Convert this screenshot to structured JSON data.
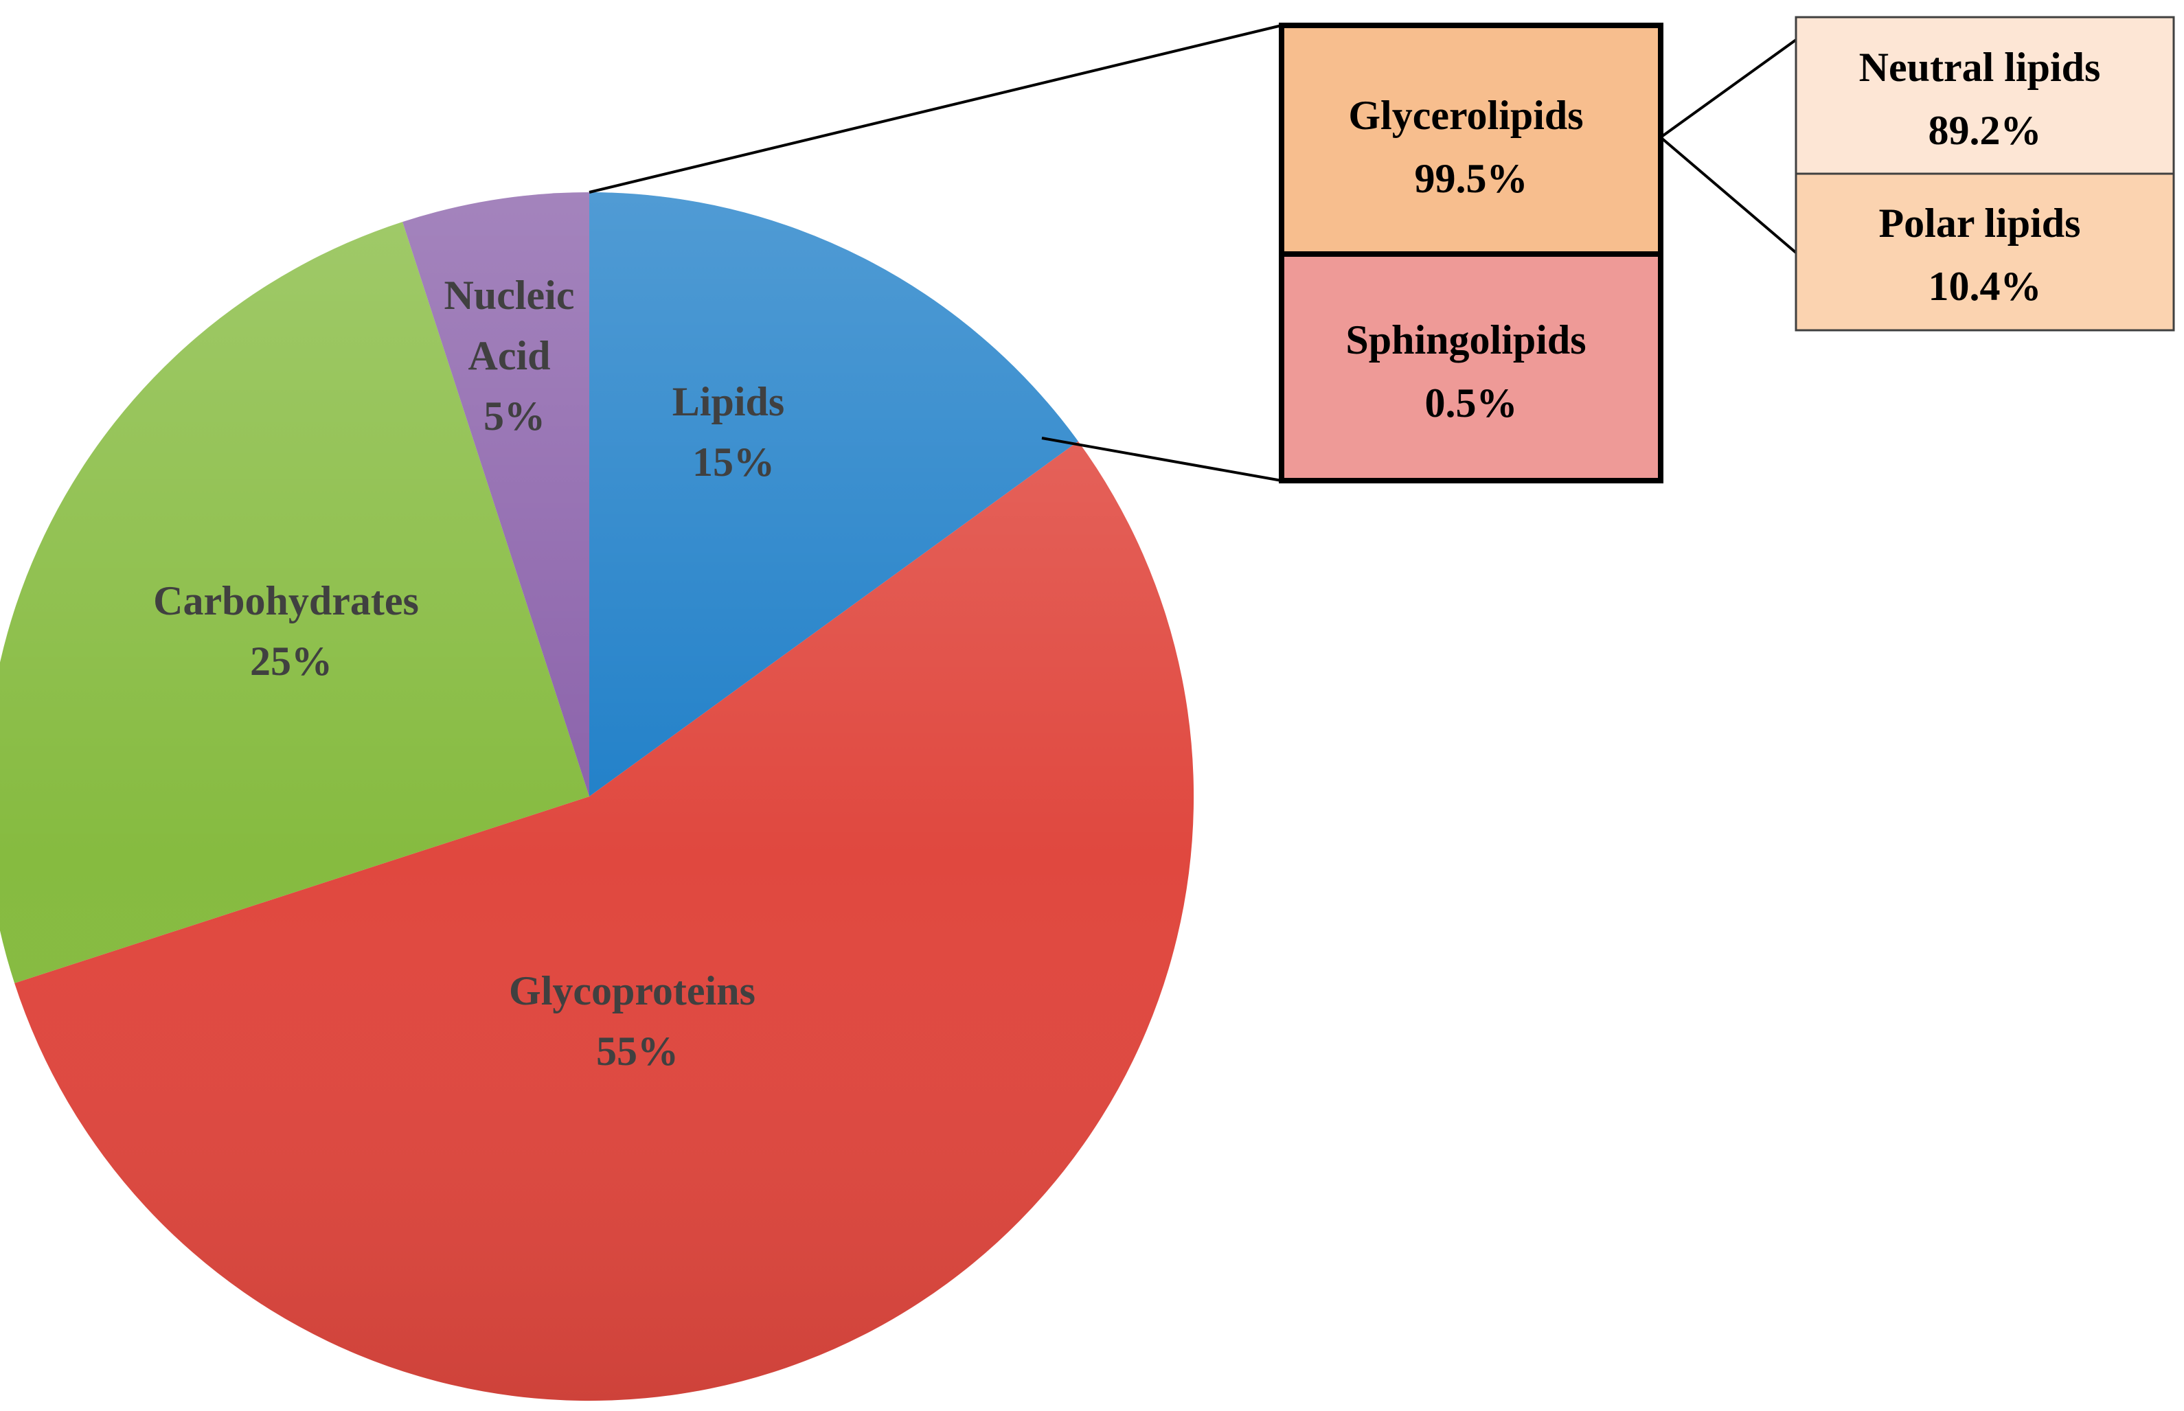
{
  "chart_data": {
    "type": "pie",
    "slices": [
      {
        "name": "Lipids",
        "label": "15%",
        "value": 15,
        "color": "#1f7fc8"
      },
      {
        "name": "Glycoproteins",
        "label": "55%",
        "value": 55,
        "color": "#e0483f"
      },
      {
        "name": "Carbohydrates",
        "label": "25%",
        "value": 25,
        "color": "#86bb40"
      },
      {
        "name": "Nucleic Acid",
        "label": "5%",
        "value": 5,
        "color": "#8a61aa"
      }
    ],
    "breakdown": {
      "of": "Lipids",
      "items": [
        {
          "name": "Glycerolipids",
          "label": "99.5%",
          "value": 99.5,
          "color": "#f7be8e"
        },
        {
          "name": "Sphingolipids",
          "label": "0.5%",
          "value": 0.5,
          "color": "#ee9a97"
        }
      ],
      "sub_breakdown": {
        "of": "Glycerolipids",
        "items": [
          {
            "name": "Neutral lipids",
            "label": "89.2%",
            "value": 89.2,
            "color": "#fde6d5"
          },
          {
            "name": "Polar lipids",
            "label": "10.4%",
            "value": 10.4,
            "color": "#fbd3b0"
          }
        ]
      }
    }
  }
}
